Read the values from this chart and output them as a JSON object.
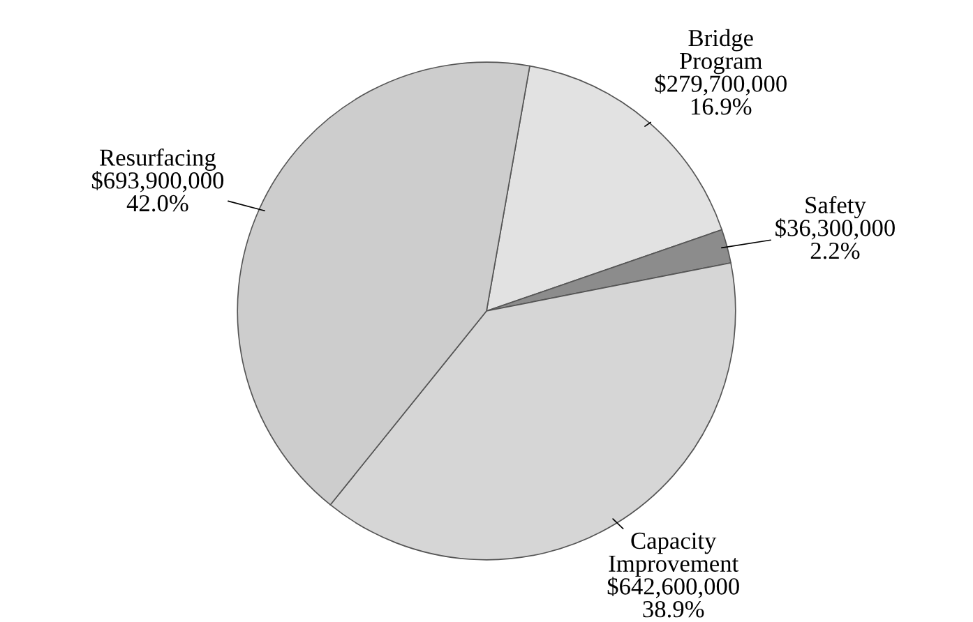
{
  "chart_data": {
    "type": "pie",
    "categories": [
      "Bridge Program",
      "Safety",
      "Capacity Improvement",
      "Resurfacing"
    ],
    "values": [
      279700000,
      36300000,
      642600000,
      693900000
    ],
    "value_labels": [
      "$279,700,000\n16.9%",
      "$36,300,000\n2.2%",
      "$642,600,000\n38.9%",
      "$693,900,000\n42.0%"
    ],
    "colors": [
      "#e2e2e2",
      "#8c8c8c",
      "#d6d6d6",
      "#cdcdcd"
    ],
    "legend": false
  }
}
